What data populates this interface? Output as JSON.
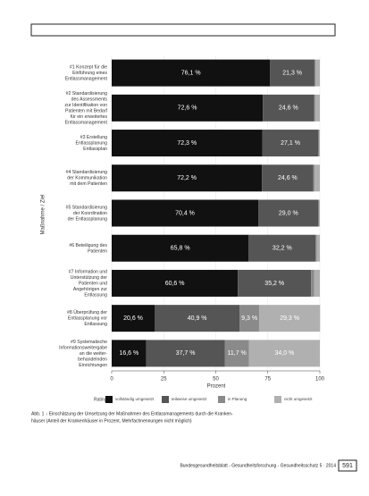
{
  "chart_data": {
    "type": "stacked-bar-horizontal",
    "categories": [
      [
        "#1 Konzept für die",
        "Einführung eines",
        "Entlassmanagement"
      ],
      [
        "#2 Standardisierung",
        "des Assessments",
        "zur Identifikation von",
        "Patienten mit Bedarf",
        "für ein erweitertes",
        "Entlassmanagement"
      ],
      [
        "#3 Erstellung",
        "Entlassplanung",
        "Entlassplan"
      ],
      [
        "#4 Standardisierung",
        "der Kommunikation",
        "mit dem Patienten"
      ],
      [
        "#5 Standardisierung",
        "der Koordination",
        "der Entlassplanung"
      ],
      [
        "#6 Beteiligung des",
        "Patienten"
      ],
      [
        "#7 Information und",
        "Unterstützung der",
        "Patienten und",
        "Angehörigen zur",
        "Entlassung"
      ],
      [
        "#8 Überprüfung der",
        "Entlassplanung vor",
        "Entlassung"
      ],
      [
        "#9 Systematische",
        "Informationsweitergabe",
        "an die weiter-",
        "behandelnden",
        "Einrichtungen"
      ]
    ],
    "series": [
      {
        "name": "vollständig umgesetzt",
        "color": "#111111",
        "values": [
          76.1,
          72.6,
          72.3,
          72.2,
          70.4,
          65.8,
          60.6,
          20.6,
          16.6
        ],
        "value_labels": [
          "76,1 %",
          "72,6 %",
          "72,3 %",
          "72,2 %",
          "70,4 %",
          "65,8 %",
          "60,6 %",
          "20,6 %",
          "16,6 %"
        ]
      },
      {
        "name": "teilweise umgesetzt",
        "color": "#555555",
        "values": [
          21.3,
          24.6,
          27.1,
          24.6,
          29.0,
          32.2,
          35.2,
          40.9,
          37.7
        ],
        "value_labels": [
          "21,3 %",
          "24,6 %",
          "27,1 %",
          "24,6 %",
          "29,0 %",
          "32,2 %",
          "35,2 %",
          "40,9 %",
          "37,7 %"
        ]
      },
      {
        "name": "in Planung",
        "color": "#8a8a8a",
        "values": [
          0.6,
          0.6,
          0,
          0.6,
          0,
          0.6,
          1.4,
          9.3,
          11.7
        ],
        "value_labels": [
          null,
          null,
          null,
          null,
          null,
          null,
          null,
          "9,3 %",
          "11,7 %"
        ]
      },
      {
        "name": "nicht umgesetzt",
        "color": "#b0b0b0",
        "values": [
          2.0,
          2.2,
          0.6,
          2.6,
          0.6,
          1.4,
          2.8,
          29.3,
          34.0
        ],
        "value_labels": [
          null,
          null,
          null,
          null,
          null,
          null,
          null,
          "29,3 %",
          "34,0 %"
        ]
      }
    ],
    "xlim": [
      0,
      100
    ],
    "xticks": [
      0,
      25,
      50,
      75,
      100
    ],
    "xlabel": "Prozent",
    "ylabel": "Maßnahme / Ziel",
    "legend_title": "Rating"
  },
  "caption": [
    "Abb. 1 ↓ Einschätzung der Umsetzung der Maßnahmen des Entlassmanagements durch die Kranken-",
    "häuser (Anteil der Krankenhäuser in Prozent, Mehrfachnennungen nicht möglich)"
  ],
  "footer": {
    "journal": "Bundesgesundheitsblatt - Gesundheitsforschung - Gesundheitsschutz 5 · 2014",
    "page": "591"
  }
}
